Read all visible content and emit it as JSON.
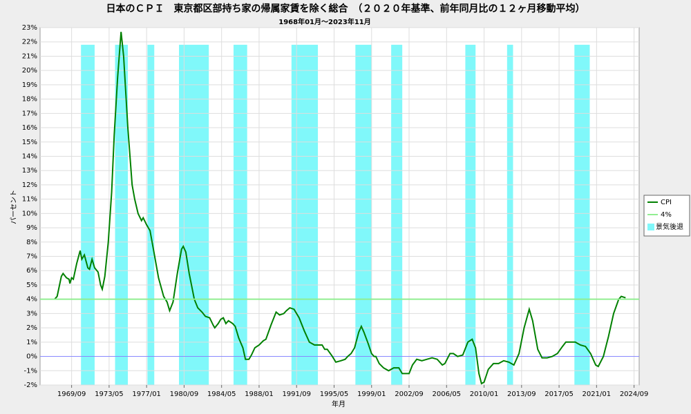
{
  "chart_data": {
    "type": "line",
    "title": "日本のＣＰＩ　東京都区部持ち家の帰属家賃を除く総合　（２０２０年基準、前年同月比の１２ヶ月移動平均）",
    "subtitle": "1968年01月～2023年11月",
    "x_label": "年月",
    "y_label": "パーセント",
    "xlim": [
      "1966/08",
      "2025/03"
    ],
    "xticks": [
      "1969/09",
      "1973/05",
      "1977/01",
      "1980/09",
      "1984/05",
      "1988/01",
      "1991/09",
      "1995/05",
      "1999/01",
      "2002/09",
      "2006/05",
      "2010/01",
      "2013/09",
      "2017/05",
      "2021/01",
      "2024/09"
    ],
    "ylim": [
      -2,
      23
    ],
    "yticks": [
      {
        "value": -2,
        "label": "-2%"
      },
      {
        "value": -1,
        "label": "-1%"
      },
      {
        "value": 0,
        "label": "0%"
      },
      {
        "value": 1,
        "label": "1%"
      },
      {
        "value": 2,
        "label": "2%"
      },
      {
        "value": 3,
        "label": "3%"
      },
      {
        "value": 4,
        "label": "4%"
      },
      {
        "value": 5,
        "label": "5%"
      },
      {
        "value": 6,
        "label": "6%"
      },
      {
        "value": 7,
        "label": "7%"
      },
      {
        "value": 8,
        "label": "8%"
      },
      {
        "value": 9,
        "label": "9%"
      },
      {
        "value": 10,
        "label": "10%"
      },
      {
        "value": 11,
        "label": "11%"
      },
      {
        "value": 12,
        "label": "12%"
      },
      {
        "value": 13,
        "label": "13%"
      },
      {
        "value": 14,
        "label": "14%"
      },
      {
        "value": 15,
        "label": "15%"
      },
      {
        "value": 16,
        "label": "16%"
      },
      {
        "value": 17,
        "label": "17%"
      },
      {
        "value": 18,
        "label": "18%"
      },
      {
        "value": 19,
        "label": "19%"
      },
      {
        "value": 20,
        "label": "20%"
      },
      {
        "value": 21,
        "label": "21%"
      },
      {
        "value": 22,
        "label": "22%"
      },
      {
        "value": 23,
        "label": "23%"
      }
    ],
    "grid": true,
    "zero_line_color": "#8888ff",
    "legend": "right",
    "series": [
      {
        "name": "CPI",
        "color": "#008000",
        "x": [
          "1968/01",
          "1968/04",
          "1968/09",
          "1968/11",
          "1969/03",
          "1969/06",
          "1969/07",
          "1969/09",
          "1969/11",
          "1970/03",
          "1970/07",
          "1970/09",
          "1970/12",
          "1971/04",
          "1971/06",
          "1971/09",
          "1971/12",
          "1972/04",
          "1972/07",
          "1972/09",
          "1972/12",
          "1973/04",
          "1973/08",
          "1973/11",
          "1974/03",
          "1974/07",
          "1974/10",
          "1975/03",
          "1975/08",
          "1975/11",
          "1976/03",
          "1976/07",
          "1976/09",
          "1977/01",
          "1977/05",
          "1977/09",
          "1978/03",
          "1978/09",
          "1979/01",
          "1979/04",
          "1979/08",
          "1980/01",
          "1980/06",
          "1980/08",
          "1980/11",
          "1981/03",
          "1981/09",
          "1982/01",
          "1982/06",
          "1982/10",
          "1983/03",
          "1983/07",
          "1983/09",
          "1984/01",
          "1984/04",
          "1984/07",
          "1984/10",
          "1985/01",
          "1985/06",
          "1985/09",
          "1986/01",
          "1986/06",
          "1986/09",
          "1987/01",
          "1987/04",
          "1987/08",
          "1988/01",
          "1988/06",
          "1988/09",
          "1989/03",
          "1989/09",
          "1990/01",
          "1990/06",
          "1990/09",
          "1991/01",
          "1991/06",
          "1991/12",
          "1992/06",
          "1992/12",
          "1993/06",
          "1994/03",
          "1994/06",
          "1994/09",
          "1995/03",
          "1995/07",
          "1996/01",
          "1996/06",
          "1996/09",
          "1997/01",
          "1997/05",
          "1997/10",
          "1998/01",
          "1998/04",
          "1998/09",
          "1999/01",
          "1999/04",
          "1999/06",
          "1999/10",
          "2000/03",
          "2000/09",
          "2001/03",
          "2001/09",
          "2002/01",
          "2002/09",
          "2003/01",
          "2003/06",
          "2003/12",
          "2004/06",
          "2004/12",
          "2005/06",
          "2005/12",
          "2006/03",
          "2006/09",
          "2007/01",
          "2007/06",
          "2007/12",
          "2008/06",
          "2008/11",
          "2009/03",
          "2009/07",
          "2009/10",
          "2010/01",
          "2010/06",
          "2010/12",
          "2011/06",
          "2011/12",
          "2012/06",
          "2012/12",
          "2013/06",
          "2013/12",
          "2014/06",
          "2014/10",
          "2015/04",
          "2015/09",
          "2016/03",
          "2016/09",
          "2017/03",
          "2017/09",
          "2018/01",
          "2018/06",
          "2018/12",
          "2019/06",
          "2019/12",
          "2020/06",
          "2020/12",
          "2021/03",
          "2021/09",
          "2022/03",
          "2022/09",
          "2023/03",
          "2023/06",
          "2023/11"
        ],
        "values": [
          4.0,
          4.2,
          5.6,
          5.8,
          5.5,
          5.4,
          5.1,
          5.5,
          5.4,
          6.5,
          7.4,
          6.8,
          7.1,
          6.2,
          6.1,
          6.8,
          6.2,
          5.9,
          5.0,
          4.7,
          5.6,
          8.0,
          11.5,
          15.5,
          19.5,
          22.7,
          21.0,
          16.0,
          12.0,
          11.0,
          10.0,
          9.5,
          9.7,
          9.2,
          8.8,
          7.5,
          5.5,
          4.2,
          3.8,
          3.2,
          3.8,
          5.8,
          7.5,
          7.7,
          7.3,
          5.8,
          4.0,
          3.4,
          3.1,
          2.8,
          2.7,
          2.2,
          2.0,
          2.3,
          2.6,
          2.7,
          2.3,
          2.5,
          2.3,
          2.1,
          1.3,
          0.6,
          -0.2,
          -0.2,
          0.1,
          0.6,
          0.8,
          1.1,
          1.2,
          2.2,
          3.1,
          2.9,
          3.0,
          3.2,
          3.4,
          3.3,
          2.7,
          1.8,
          1.0,
          0.8,
          0.8,
          0.5,
          0.5,
          0.0,
          -0.4,
          -0.3,
          -0.2,
          0.0,
          0.2,
          0.6,
          1.7,
          2.1,
          1.7,
          0.9,
          0.2,
          0.0,
          0.0,
          -0.5,
          -0.8,
          -1.0,
          -0.8,
          -0.8,
          -1.2,
          -1.2,
          -0.6,
          -0.2,
          -0.3,
          -0.2,
          -0.1,
          -0.2,
          -0.6,
          -0.5,
          0.2,
          0.2,
          0.0,
          0.1,
          1.0,
          1.2,
          0.6,
          -1.2,
          -1.9,
          -1.8,
          -0.9,
          -0.5,
          -0.5,
          -0.3,
          -0.4,
          -0.6,
          0.2,
          2.0,
          3.3,
          2.5,
          0.5,
          -0.1,
          -0.1,
          0.0,
          0.2,
          0.7,
          1.0,
          1.0,
          1.0,
          0.8,
          0.7,
          0.2,
          -0.6,
          -0.7,
          0.0,
          1.4,
          3.0,
          4.0,
          4.2,
          4.1
        ]
      },
      {
        "name": "4%",
        "color": "#90ee90",
        "value": 4
      }
    ],
    "recession": {
      "name": "景気後退",
      "color": "#80f8fa",
      "level": 21.8,
      "periods": [
        [
          "1970/08",
          "1971/12"
        ],
        [
          "1973/12",
          "1975/03"
        ],
        [
          "1977/02",
          "1977/10"
        ],
        [
          "1980/03",
          "1983/02"
        ],
        [
          "1985/07",
          "1986/11"
        ],
        [
          "1991/03",
          "1993/10"
        ],
        [
          "1997/06",
          "1999/01"
        ],
        [
          "2000/12",
          "2002/01"
        ],
        [
          "2008/03",
          "2009/03"
        ],
        [
          "2012/04",
          "2012/11"
        ],
        [
          "2018/11",
          "2020/05"
        ]
      ]
    }
  }
}
